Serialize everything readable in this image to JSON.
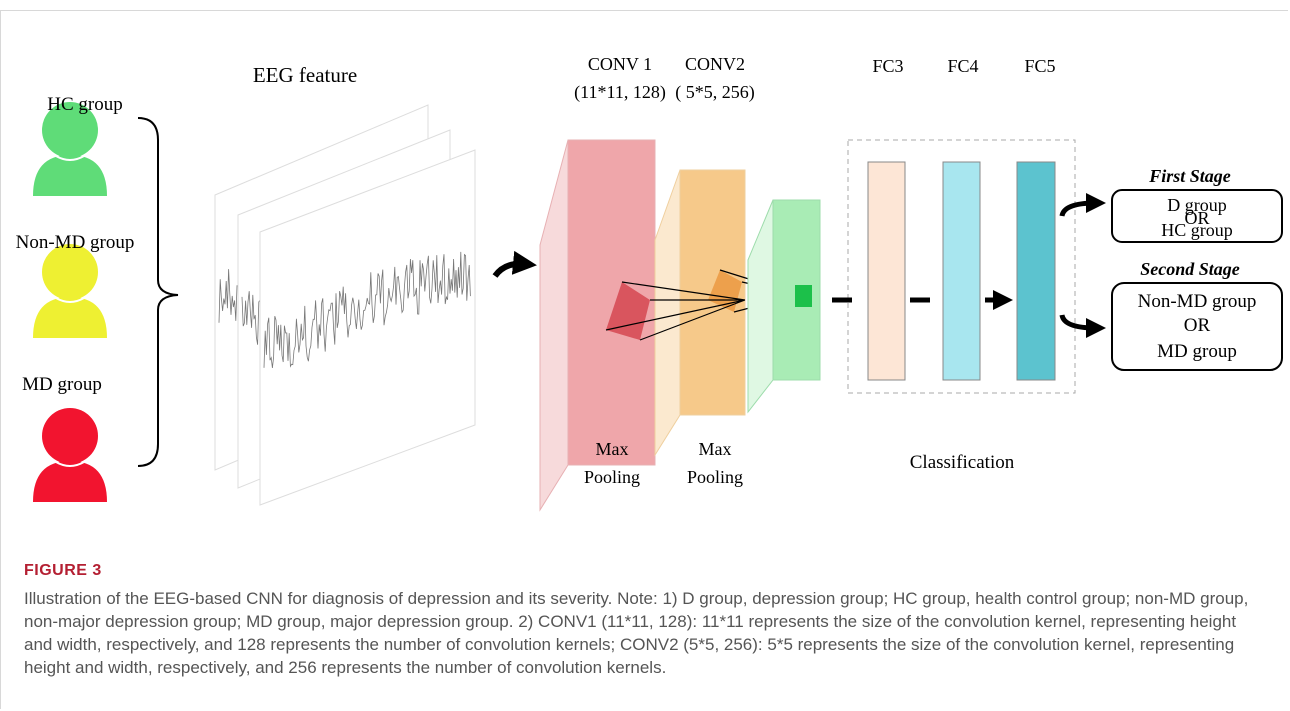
{
  "figure": {
    "groups": [
      "HC group",
      "Non-MD group",
      "MD group"
    ],
    "eeg_label": "EEG feature",
    "conv": [
      {
        "name": "CONV 1",
        "params": "(11*11, 128)"
      },
      {
        "name": "CONV2",
        "params": "( 5*5, 256)"
      }
    ],
    "pooling": [
      [
        "Max",
        "Pooling"
      ],
      [
        "Max",
        "Pooling"
      ]
    ],
    "fc": [
      "FC3",
      "FC4",
      "FC5"
    ],
    "classification": "Classification",
    "stages": [
      {
        "title": "First Stage",
        "lines": [
          "D group",
          "OR",
          "HC group"
        ]
      },
      {
        "title": "Second Stage",
        "lines": [
          "Non-MD group",
          "OR",
          "MD group"
        ]
      }
    ]
  },
  "caption": {
    "label": "FIGURE 3",
    "text": "Illustration of the EEG-based CNN for diagnosis of depression and its severity. Note: 1) D group, depression group; HC group, health control group; non-MD group, non-major depression group; MD group, major depression group. 2) CONV1 (11*11, 128): 11*11 represents the size of the convolution kernel, representing height and width, respectively, and 128 represents the number of convolution kernels; CONV2 (5*5, 256): 5*5 represents the size of the convolution kernel, representing height and width, respectively, and 256 represents the number of convolution kernels."
  }
}
